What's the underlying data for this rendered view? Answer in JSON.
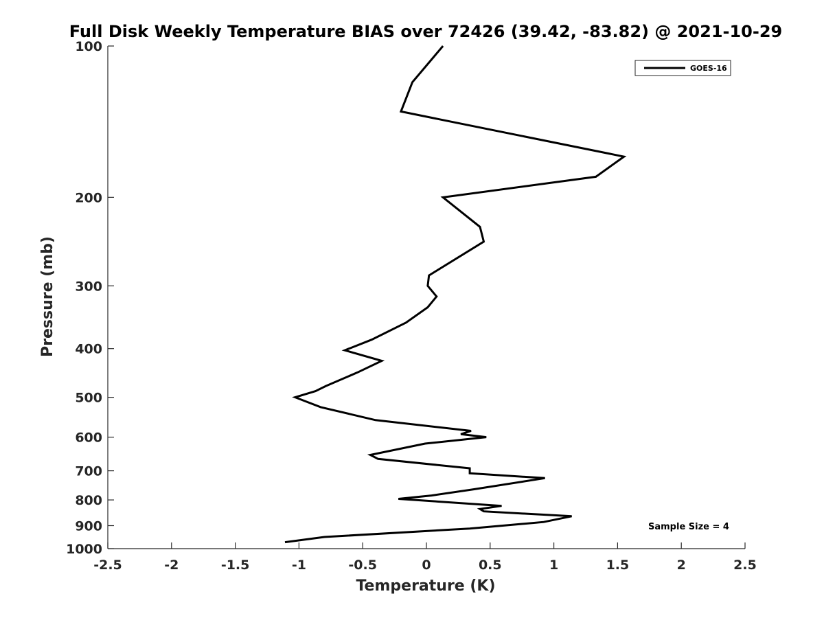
{
  "chart_data": {
    "type": "line",
    "title": "Full Disk Weekly Temperature BIAS over 72426 (39.42, -83.82) @ 2021-10-29",
    "xlabel": "Temperature (K)",
    "ylabel": "Pressure (mb)",
    "xlim": [
      -2.5,
      2.5
    ],
    "ylim": [
      100,
      1000
    ],
    "y_scale": "log",
    "y_reversed": true,
    "x_ticks": [
      "-2.5",
      "-2",
      "-1.5",
      "-1",
      "-0.5",
      "0",
      "0.5",
      "1",
      "1.5",
      "2",
      "2.5"
    ],
    "x_tick_values": [
      -2.5,
      -2,
      -1.5,
      -1,
      -0.5,
      0,
      0.5,
      1,
      1.5,
      2,
      2.5
    ],
    "y_ticks": [
      "100",
      "200",
      "300",
      "400",
      "500",
      "600",
      "700",
      "800",
      "900",
      "1000"
    ],
    "y_tick_values": [
      100,
      200,
      300,
      400,
      500,
      600,
      700,
      800,
      900,
      1000
    ],
    "grid": false,
    "legend_position": "top-right",
    "annotation": "Sample Size = 4",
    "series": [
      {
        "name": "GOES-16",
        "color": "#000000",
        "x": [
          0.13,
          -0.11,
          -0.2,
          1.55,
          1.33,
          0.13,
          0.42,
          0.45,
          0.02,
          0.01,
          0.08,
          0.01,
          -0.16,
          -0.43,
          -0.64,
          -0.35,
          -0.54,
          -0.79,
          -0.87,
          -1.03,
          -0.83,
          -0.4,
          0.35,
          0.27,
          0.47,
          -0.01,
          -0.44,
          -0.38,
          0.34,
          0.34,
          0.93,
          0.37,
          0.04,
          -0.22,
          0.59,
          0.42,
          0.45,
          1.14,
          0.92,
          0.34,
          -0.8,
          -1.11
        ],
        "y": [
          100,
          118,
          135,
          166,
          182,
          200,
          229,
          245,
          286,
          300,
          315,
          331,
          355,
          384,
          403,
          423,
          446,
          475,
          486,
          500,
          523,
          555,
          583,
          592,
          600,
          618,
          651,
          663,
          692,
          708,
          724,
          762,
          784,
          796,
          822,
          834,
          843,
          862,
          885,
          912,
          948,
          971
        ]
      }
    ]
  }
}
